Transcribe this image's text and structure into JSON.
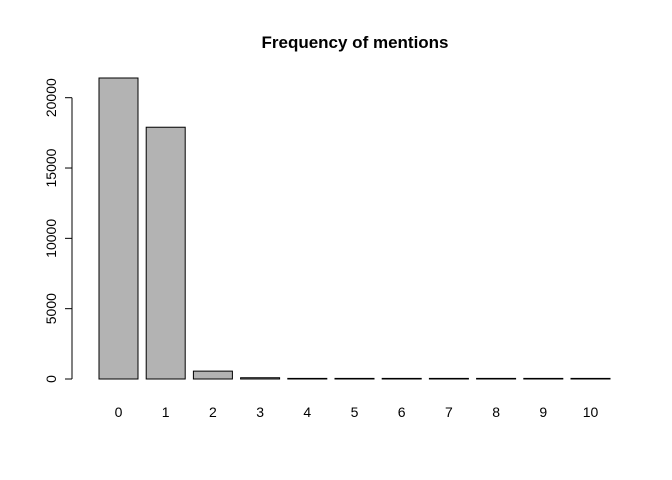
{
  "chart_data": {
    "type": "bar",
    "title": "Frequency of mentions",
    "xlabel": "",
    "ylabel": "",
    "categories": [
      "0",
      "1",
      "2",
      "3",
      "4",
      "5",
      "6",
      "7",
      "8",
      "9",
      "10"
    ],
    "values": [
      21400,
      17900,
      560,
      90,
      30,
      12,
      6,
      4,
      3,
      2,
      2
    ],
    "ylim": [
      0,
      21400
    ],
    "yticks": [
      0,
      5000,
      10000,
      15000,
      20000
    ],
    "ytick_labels": [
      "0",
      "5000",
      "10000",
      "15000",
      "20000"
    ],
    "bar_color": "#b3b3b3",
    "grid": false
  }
}
